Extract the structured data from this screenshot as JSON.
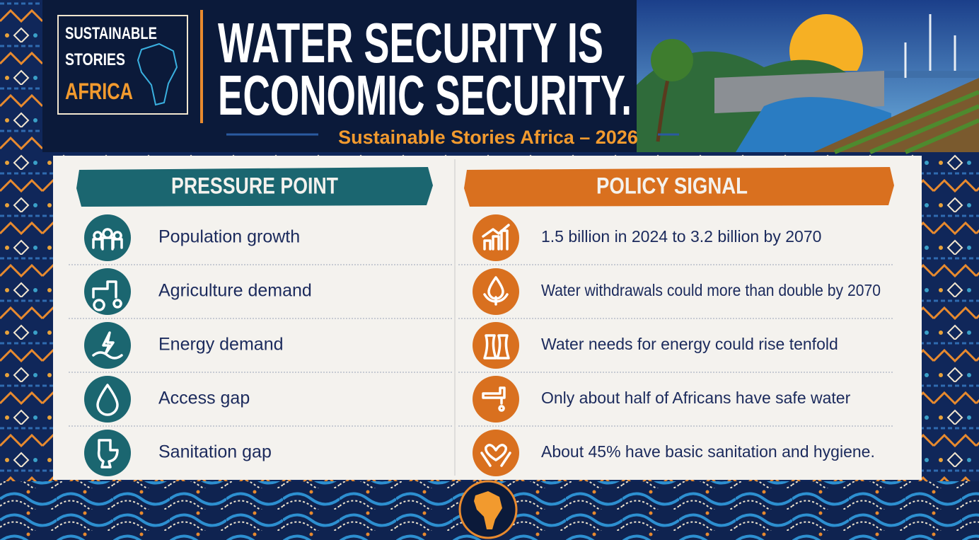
{
  "logo": {
    "lines": [
      "SUSTAINABLE",
      "STORIES",
      "AFRICA"
    ]
  },
  "header": {
    "title_lines": [
      "WATER SECURITY IS",
      "ECONOMIC SECURITY."
    ],
    "subtitle": "Sustainable Stories Africa – 2026"
  },
  "table": {
    "columns": [
      "PRESSURE POINT",
      "POLICY SIGNAL"
    ],
    "rows": [
      [
        "Population growth",
        "1.5 billion in 2024 to 3.2 billion by 2070"
      ],
      [
        "Agriculture demand",
        "Water withdrawals could more than double by 2070"
      ],
      [
        "Energy demand",
        "Water needs for energy could rise tenfold"
      ],
      [
        "Access gap",
        "Only about half of Africans have safe water"
      ],
      [
        "Sanitation gap",
        "About 45% have basic sanitation and hygiene."
      ]
    ]
  }
}
